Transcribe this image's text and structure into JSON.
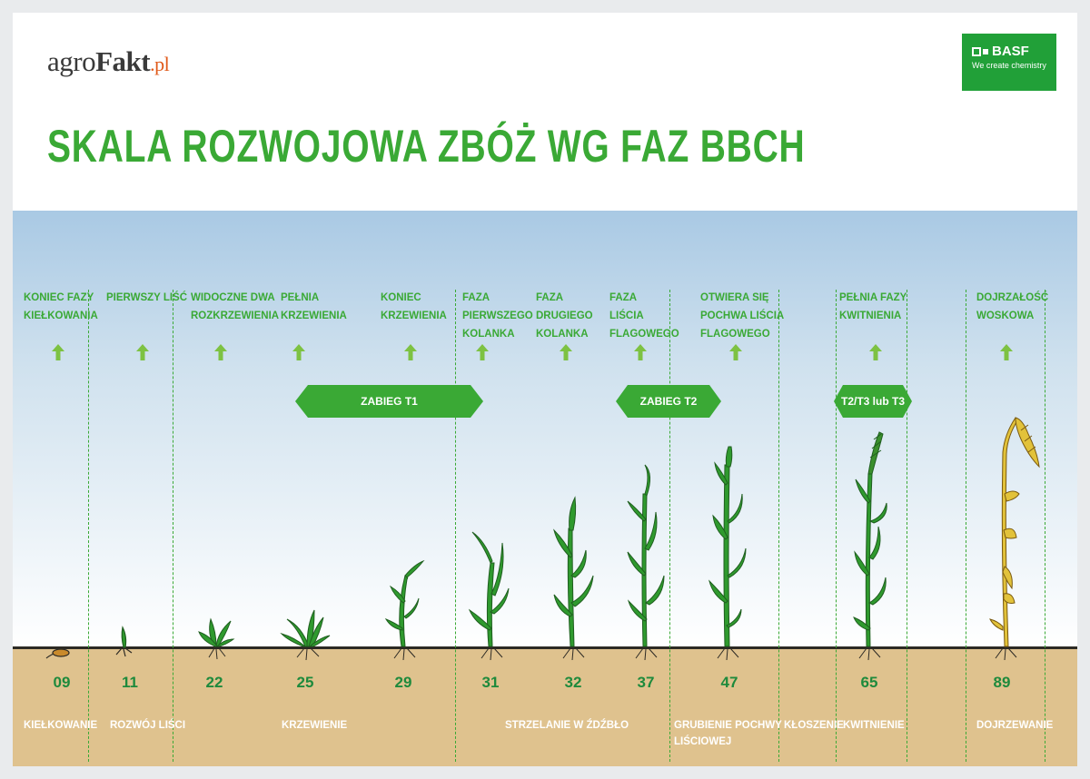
{
  "header": {
    "logo_agro": "agro",
    "logo_fakt": "Fakt",
    "logo_pl": ".pl",
    "basf_name": "BASF",
    "basf_tagline": "We create chemistry",
    "title": "SKALA ROZWOJOWA ZBÓŻ WG FAZ BBCH"
  },
  "colors": {
    "title_green": "#3aa935",
    "basf_green": "#21a038",
    "code_green": "#1e8a3c",
    "soil": "#dfc28e",
    "plant_green": "#2f9a2e",
    "ripe_yellow": "#e2c23a"
  },
  "stages": [
    {
      "code": "09",
      "label": "KONIEC FAZY\nKIEŁKOWANIA"
    },
    {
      "code": "11",
      "label": "PIERWSZY LIŚĆ"
    },
    {
      "code": "22",
      "label": "WIDOCZNE DWA\nROZKRZEWIENIA"
    },
    {
      "code": "25",
      "label": "PEŁNIA\nKRZEWIENIA"
    },
    {
      "code": "29",
      "label": "KONIEC\nKRZEWIENIA"
    },
    {
      "code": "31",
      "label": "FAZA\nPIERWSZEGO\nKOLANKA"
    },
    {
      "code": "32",
      "label": "FAZA\nDRUGIEGO\nKOLANKA"
    },
    {
      "code": "37",
      "label": "FAZA\nLIŚCIA\nFLAGOWEGO"
    },
    {
      "code": "47",
      "label": "OTWIERA SIĘ\nPOCHWA LIŚCIA\nFLAGOWEGO"
    },
    {
      "code": "65",
      "label": "PEŁNIA FAZY\nKWITNIENIA"
    },
    {
      "code": "89",
      "label": "DOJRZAŁOŚĆ\nWOSKOWA"
    }
  ],
  "treatments": [
    {
      "label": "ZABIEG T1"
    },
    {
      "label": "ZABIEG T2"
    },
    {
      "label": "T2/T3 lub T3"
    }
  ],
  "phases": [
    {
      "label": "KIEŁKOWANIE"
    },
    {
      "label": "ROZWÓJ LIŚCI"
    },
    {
      "label": "KRZEWIENIE"
    },
    {
      "label": "STRZELANIE W ŹDŹBŁO"
    },
    {
      "label": "GRUBIENIE POCHWY\nLIŚCIOWEJ"
    },
    {
      "label": "KŁOSZENIE"
    },
    {
      "label": "KWITNIENIE"
    },
    {
      "label": "DOJRZEWANIE"
    }
  ]
}
